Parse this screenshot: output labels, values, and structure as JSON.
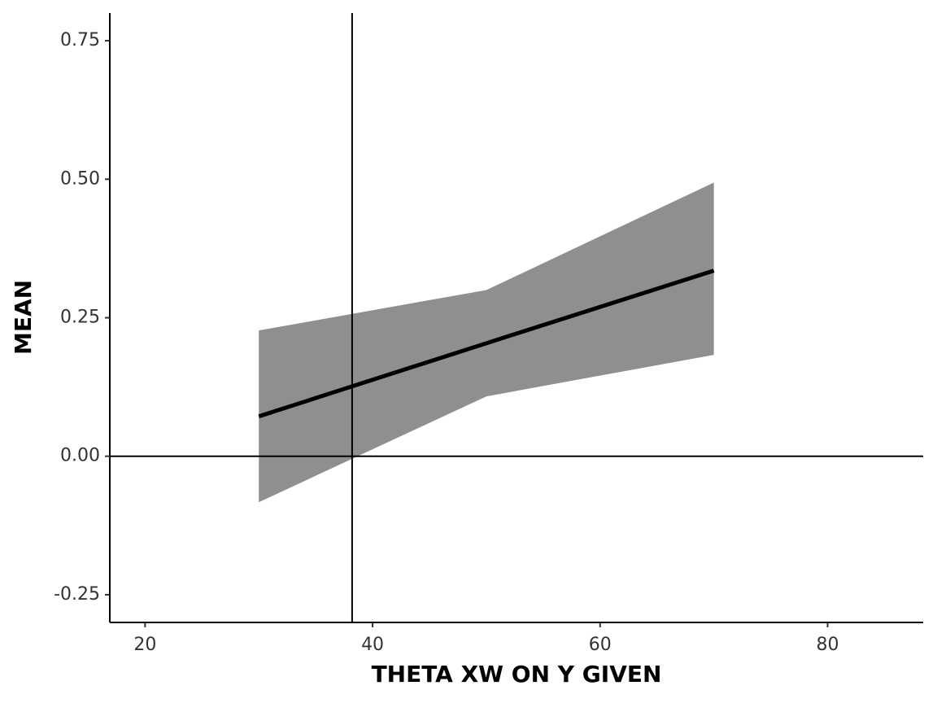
{
  "chart_data": {
    "type": "line",
    "x_label": "THETA XW ON Y GIVEN",
    "y_label": "MEAN",
    "x": [
      30,
      50,
      70
    ],
    "values": [
      0.072,
      0.204,
      0.335
    ],
    "lower": [
      -0.083,
      0.108,
      0.183
    ],
    "upper": [
      0.227,
      0.3,
      0.494
    ],
    "color": "#000000",
    "band_color": "#8f8f8f",
    "vline": 38.2,
    "hline": 0,
    "xlim": [
      16.9,
      88.4
    ],
    "ylim": [
      -0.3,
      0.8
    ],
    "xticks": [
      20,
      40,
      60,
      80
    ],
    "yticks": [
      {
        "value": -0.25,
        "label": "-0.25"
      },
      {
        "value": 0,
        "label": "0.00"
      },
      {
        "value": 0.25,
        "label": "0.25"
      },
      {
        "value": 0.5,
        "label": "0.50"
      },
      {
        "value": 0.75,
        "label": "0.75"
      }
    ]
  }
}
